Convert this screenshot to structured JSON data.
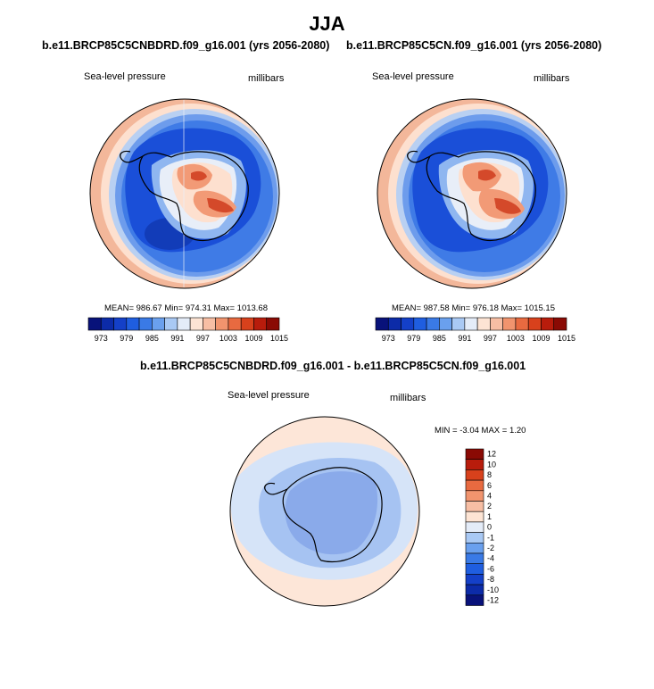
{
  "season": "JJA",
  "panels": [
    {
      "title": "b.e11.BRCP85C5CNBDRD.f09_g16.001 (yrs 2056-2080)",
      "variable": "Sea-level pressure",
      "units": "millibars",
      "stats": "MEAN= 986.67  Min= 974.31  Max= 1013.68"
    },
    {
      "title": "b.e11.BRCP85C5CN.f09_g16.001 (yrs 2056-2080)",
      "variable": "Sea-level pressure",
      "units": "millibars",
      "stats": "MEAN= 987.58  Min= 976.18  Max= 1015.15"
    }
  ],
  "top_colorbar": {
    "colors": [
      "#08127a",
      "#0c2ba8",
      "#1440c8",
      "#1f5ee0",
      "#3a7ae6",
      "#6aa0ee",
      "#a9c9f4",
      "#e4ecf8",
      "#fde4d4",
      "#f7bea4",
      "#f1946e",
      "#e86a40",
      "#d8411c",
      "#b81c0c",
      "#8a0a04"
    ],
    "labels": [
      "973",
      "979",
      "985",
      "991",
      "997",
      "1003",
      "1009",
      "1015"
    ]
  },
  "diff_panel": {
    "title": "b.e11.BRCP85C5CNBDRD.f09_g16.001 - b.e11.BRCP85C5CN.f09_g16.001",
    "variable": "Sea-level pressure",
    "units": "millibars",
    "stats": "MIN =  -3.04 MAX =   1.20"
  },
  "diff_colorbar": {
    "colors": [
      "#8a0a04",
      "#b81c0c",
      "#d8411c",
      "#e86a40",
      "#f1946e",
      "#f7bea4",
      "#fde4d4",
      "#e4ecf8",
      "#a9c9f4",
      "#6aa0ee",
      "#3a7ae6",
      "#1f5ee0",
      "#1440c8",
      "#0c2ba8",
      "#08127a"
    ],
    "labels": [
      "12",
      "10",
      "8",
      "6",
      "4",
      "2",
      "1",
      "0",
      "-1",
      "-2",
      "-4",
      "-6",
      "-8",
      "-10",
      "-12"
    ]
  },
  "palette": {
    "ocean_deep": "#1a4fd8",
    "ocean_mid": "#3f7be6",
    "ocean_light": "#8fb6f0",
    "near_white": "#e8eef8",
    "warm_light": "#fde0cf",
    "warm_mid": "#f29a76",
    "warm_deep": "#d4492a",
    "diff_light": "#d6e4f8",
    "diff_mid": "#a6c3f2",
    "diff_deep": "#8aaaea",
    "diff_warm": "#fde6d8"
  }
}
